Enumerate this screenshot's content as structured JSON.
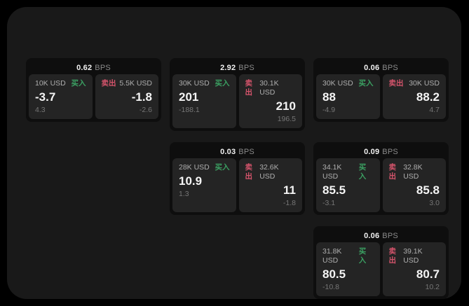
{
  "labels": {
    "bps_unit": "BPS"
  },
  "colors": {
    "buy": "#3ba062",
    "sell": "#d4546b",
    "panel": "#191919",
    "card": "#0e0e0e",
    "tile": "#242424"
  },
  "cards": [
    {
      "bps": "0.62",
      "row": 1,
      "col": 1,
      "buy": {
        "amount": "10K USD",
        "label": "买入",
        "price": "-3.7",
        "sub": "4.3"
      },
      "sell": {
        "label": "卖出",
        "amount": "5.5K USD",
        "price": "-1.8",
        "sub": "-2.6"
      }
    },
    {
      "bps": "2.92",
      "row": 1,
      "col": 2,
      "buy": {
        "amount": "30K USD",
        "label": "买入",
        "price": "201",
        "sub": "-188.1"
      },
      "sell": {
        "label": "卖出",
        "amount": "30.1K USD",
        "price": "210",
        "sub": "196.5"
      }
    },
    {
      "bps": "0.06",
      "row": 1,
      "col": 3,
      "buy": {
        "amount": "30K USD",
        "label": "买入",
        "price": "88",
        "sub": "-4.9"
      },
      "sell": {
        "label": "卖出",
        "amount": "30K USD",
        "price": "88.2",
        "sub": "4.7"
      }
    },
    {
      "bps": "0.03",
      "row": 2,
      "col": 2,
      "buy": {
        "amount": "28K USD",
        "label": "买入",
        "price": "10.9",
        "sub": "1.3"
      },
      "sell": {
        "label": "卖出",
        "amount": "32.6K USD",
        "price": "11",
        "sub": "-1.8"
      }
    },
    {
      "bps": "0.09",
      "row": 2,
      "col": 3,
      "buy": {
        "amount": "34.1K USD",
        "label": "买入",
        "price": "85.5",
        "sub": "-3.1"
      },
      "sell": {
        "label": "卖出",
        "amount": "32.8K USD",
        "price": "85.8",
        "sub": "3.0"
      }
    },
    {
      "bps": "0.06",
      "row": 3,
      "col": 3,
      "buy": {
        "amount": "31.8K USD",
        "label": "买入",
        "price": "80.5",
        "sub": "-10.8"
      },
      "sell": {
        "label": "卖出",
        "amount": "39.1K USD",
        "price": "80.7",
        "sub": "10.2"
      }
    }
  ]
}
